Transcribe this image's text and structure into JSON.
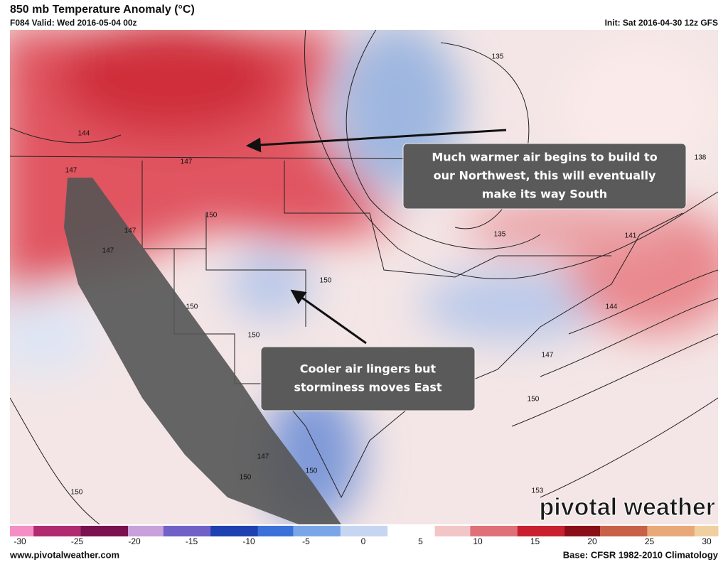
{
  "header": {
    "title": "850 mb Temperature Anomaly (°C)",
    "valid": "F084 Valid: Wed 2016-05-04 00z",
    "init": "Init: Sat 2016-04-30 12z GFS"
  },
  "annotations": [
    {
      "lines": [
        "Much warmer air begins to build to",
        "our Northwest, this will eventually",
        "make its way South"
      ]
    },
    {
      "lines": [
        "Cooler air lingers but",
        "storminess moves East"
      ]
    }
  ],
  "contour_labels": [
    135,
    135,
    144,
    147,
    147,
    147,
    147,
    150,
    150,
    150,
    150,
    150,
    147,
    150,
    150,
    141,
    144,
    147,
    150,
    153,
    138
  ],
  "colorbar": {
    "ticks": [
      -30,
      -25,
      -20,
      -15,
      -10,
      -5,
      0,
      5,
      10,
      15,
      20,
      25,
      30
    ]
  },
  "logo": "pivotal weather",
  "footer": {
    "left": "www.pivotalweather.com",
    "right": "Base: CFSR 1982-2010 Climatology"
  }
}
